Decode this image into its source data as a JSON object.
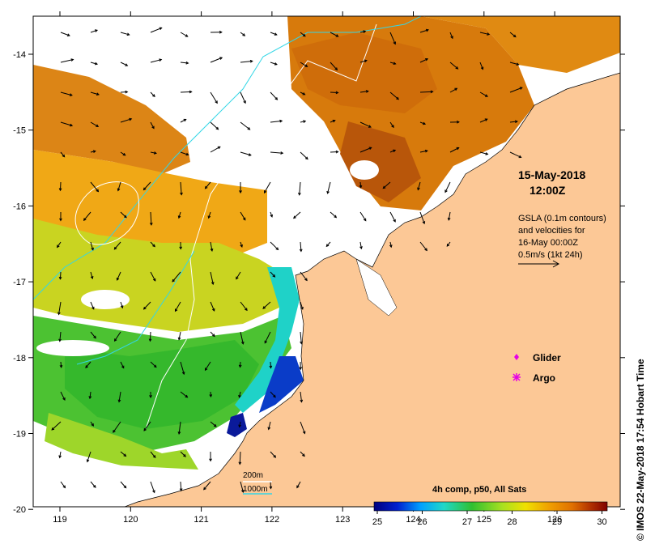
{
  "map": {
    "date": "15-May-2018",
    "time": "12:00Z",
    "gsla_note": [
      "GSLA (0.1m contours)",
      "and velocities for",
      "16-May 00:00Z",
      "0.5m/s (1kt 24h)"
    ],
    "legend": [
      {
        "label": "Glider",
        "color": "#e600e6",
        "symbol": "diamond"
      },
      {
        "label": "Argo",
        "color": "#e600e6",
        "symbol": "star"
      }
    ],
    "isobaths": [
      {
        "label": "200m",
        "color": "#ffffff"
      },
      {
        "label": "1000m",
        "color": "#33d6e6"
      }
    ],
    "colorbar": {
      "title": "4h comp, p50, All Sats",
      "ticks": [
        "25",
        "26",
        "27",
        "28",
        "29",
        "30"
      ],
      "colors": [
        "#00007f",
        "#0020d0",
        "#00a0ff",
        "#20d8c8",
        "#30c030",
        "#a8e020",
        "#f0e000",
        "#f0a000",
        "#e07000",
        "#b03000",
        "#800000"
      ]
    },
    "x_ticks": [
      "119",
      "120",
      "121",
      "122",
      "123",
      "124",
      "125",
      "126"
    ],
    "y_ticks": [
      "-14",
      "-15",
      "-16",
      "-17",
      "-18",
      "-19",
      "-20"
    ],
    "credit": "© IMOS 22-May-2018 17:54 Hobart Time",
    "land_color": "#fcc896"
  }
}
